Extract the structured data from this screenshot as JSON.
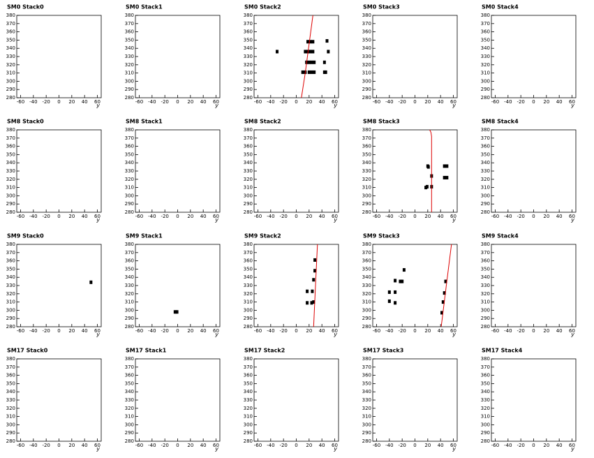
{
  "chart_data": [
    {
      "type": "scatter",
      "title": "SM0 Stack0",
      "xlabel": "y",
      "xlim": [
        -66,
        66
      ],
      "ylim": [
        280,
        380
      ],
      "xticks": [
        -60,
        -40,
        -20,
        0,
        20,
        40,
        60
      ],
      "yticks": [
        280,
        290,
        300,
        310,
        320,
        330,
        340,
        350,
        360,
        370,
        380
      ],
      "series": []
    },
    {
      "type": "scatter",
      "title": "SM0 Stack1",
      "xlabel": "y",
      "xlim": [
        -66,
        66
      ],
      "ylim": [
        280,
        380
      ],
      "xticks": [
        -60,
        -40,
        -20,
        0,
        20,
        40,
        60
      ],
      "yticks": [
        280,
        290,
        300,
        310,
        320,
        330,
        340,
        350,
        360,
        370,
        380
      ],
      "series": []
    },
    {
      "type": "scatter",
      "title": "SM0 Stack2",
      "xlabel": "y",
      "xlim": [
        -66,
        66
      ],
      "ylim": [
        280,
        380
      ],
      "xticks": [
        -60,
        -40,
        -20,
        0,
        20,
        40,
        60
      ],
      "yticks": [
        280,
        290,
        300,
        310,
        320,
        330,
        340,
        350,
        360,
        370,
        380
      ],
      "series": [
        {
          "style": "markers",
          "color": "#000000",
          "x": [
            -30,
            18,
            22,
            26,
            48,
            14,
            18,
            22,
            26,
            50,
            16,
            20,
            24,
            28,
            44,
            10,
            14,
            20,
            24,
            28,
            44,
            46
          ],
          "values": [
            336,
            348,
            348,
            348,
            349,
            336,
            336,
            336,
            336,
            336,
            323,
            323,
            323,
            323,
            323,
            311,
            311,
            311,
            311,
            311,
            311,
            311
          ]
        },
        {
          "style": "line",
          "color": "#dd0000",
          "x": [
            8,
            14,
            20,
            26
          ],
          "values": [
            280,
            310,
            345,
            380
          ]
        }
      ]
    },
    {
      "type": "scatter",
      "title": "SM0 Stack3",
      "xlabel": "y",
      "xlim": [
        -66,
        66
      ],
      "ylim": [
        280,
        380
      ],
      "xticks": [
        -60,
        -40,
        -20,
        0,
        20,
        40,
        60
      ],
      "yticks": [
        280,
        290,
        300,
        310,
        320,
        330,
        340,
        350,
        360,
        370,
        380
      ],
      "series": []
    },
    {
      "type": "scatter",
      "title": "SM0 Stack4",
      "xlabel": "y",
      "xlim": [
        -66,
        66
      ],
      "ylim": [
        280,
        380
      ],
      "xticks": [
        -60,
        -40,
        -20,
        0,
        20,
        40,
        60
      ],
      "yticks": [
        280,
        290,
        300,
        310,
        320,
        330,
        340,
        350,
        360,
        370,
        380
      ],
      "series": []
    },
    {
      "type": "scatter",
      "title": "SM8 Stack0",
      "xlabel": "y",
      "xlim": [
        -66,
        66
      ],
      "ylim": [
        280,
        380
      ],
      "xticks": [
        -60,
        -40,
        -20,
        0,
        20,
        40,
        60
      ],
      "yticks": [
        280,
        290,
        300,
        310,
        320,
        330,
        340,
        350,
        360,
        370,
        380
      ],
      "series": []
    },
    {
      "type": "scatter",
      "title": "SM8 Stack1",
      "xlabel": "y",
      "xlim": [
        -66,
        66
      ],
      "ylim": [
        280,
        380
      ],
      "xticks": [
        -60,
        -40,
        -20,
        0,
        20,
        40,
        60
      ],
      "yticks": [
        280,
        290,
        300,
        310,
        320,
        330,
        340,
        350,
        360,
        370,
        380
      ],
      "series": []
    },
    {
      "type": "scatter",
      "title": "SM8 Stack2",
      "xlabel": "y",
      "xlim": [
        -66,
        66
      ],
      "ylim": [
        280,
        380
      ],
      "xticks": [
        -60,
        -40,
        -20,
        0,
        20,
        40,
        60
      ],
      "yticks": [
        280,
        290,
        300,
        310,
        320,
        330,
        340,
        350,
        360,
        370,
        380
      ],
      "series": []
    },
    {
      "type": "scatter",
      "title": "SM8 Stack3",
      "xlabel": "y",
      "xlim": [
        -66,
        66
      ],
      "ylim": [
        280,
        380
      ],
      "xticks": [
        -60,
        -40,
        -20,
        0,
        20,
        40,
        60
      ],
      "yticks": [
        280,
        290,
        300,
        310,
        320,
        330,
        340,
        350,
        360,
        370,
        380
      ],
      "series": [
        {
          "style": "markers",
          "color": "#000000",
          "x": [
            20,
            21,
            26,
            17,
            19,
            26,
            46,
            50,
            46,
            50
          ],
          "values": [
            336,
            335,
            324,
            310,
            311,
            311,
            336,
            336,
            322,
            322
          ]
        },
        {
          "style": "line",
          "color": "#dd0000",
          "x": [
            26,
            26,
            25,
            23
          ],
          "values": [
            280,
            372,
            377,
            380
          ]
        }
      ]
    },
    {
      "type": "scatter",
      "title": "SM8 Stack4",
      "xlabel": "y",
      "xlim": [
        -66,
        66
      ],
      "ylim": [
        280,
        380
      ],
      "xticks": [
        -60,
        -40,
        -20,
        0,
        20,
        40,
        60
      ],
      "yticks": [
        280,
        290,
        300,
        310,
        320,
        330,
        340,
        350,
        360,
        370,
        380
      ],
      "series": []
    },
    {
      "type": "scatter",
      "title": "SM9 Stack0",
      "xlabel": "y",
      "xlim": [
        -66,
        66
      ],
      "ylim": [
        280,
        380
      ],
      "xticks": [
        -60,
        -40,
        -20,
        0,
        20,
        40,
        60
      ],
      "yticks": [
        280,
        290,
        300,
        310,
        320,
        330,
        340,
        350,
        360,
        370,
        380
      ],
      "series": [
        {
          "style": "markers",
          "color": "#000000",
          "x": [
            50
          ],
          "values": [
            334
          ]
        }
      ]
    },
    {
      "type": "scatter",
      "title": "SM9 Stack1",
      "xlabel": "y",
      "xlim": [
        -66,
        66
      ],
      "ylim": [
        280,
        380
      ],
      "xticks": [
        -60,
        -40,
        -20,
        0,
        20,
        40,
        60
      ],
      "yticks": [
        280,
        290,
        300,
        310,
        320,
        330,
        340,
        350,
        360,
        370,
        380
      ],
      "series": [
        {
          "style": "markers",
          "color": "#000000",
          "x": [
            -4,
            -1
          ],
          "values": [
            298,
            298
          ]
        }
      ]
    },
    {
      "type": "scatter",
      "title": "SM9 Stack2",
      "xlabel": "y",
      "xlim": [
        -66,
        66
      ],
      "ylim": [
        280,
        380
      ],
      "xticks": [
        -60,
        -40,
        -20,
        0,
        20,
        40,
        60
      ],
      "yticks": [
        280,
        290,
        300,
        310,
        320,
        330,
        340,
        350,
        360,
        370,
        380
      ],
      "series": [
        {
          "style": "markers",
          "color": "#000000",
          "x": [
            29,
            29,
            27,
            25,
            17,
            17,
            24,
            27
          ],
          "values": [
            361,
            348,
            337,
            323,
            323,
            309,
            309,
            310
          ]
        },
        {
          "style": "line",
          "color": "#dd0000",
          "x": [
            27,
            30,
            33
          ],
          "values": [
            280,
            330,
            380
          ]
        }
      ]
    },
    {
      "type": "scatter",
      "title": "SM9 Stack3",
      "xlabel": "y",
      "xlim": [
        -66,
        66
      ],
      "ylim": [
        280,
        380
      ],
      "xticks": [
        -60,
        -40,
        -20,
        0,
        20,
        40,
        60
      ],
      "yticks": [
        280,
        290,
        300,
        310,
        320,
        330,
        340,
        350,
        360,
        370,
        380
      ],
      "series": [
        {
          "style": "markers",
          "color": "#000000",
          "x": [
            48,
            46,
            44,
            42,
            -17,
            -20,
            -23,
            -31,
            -40,
            -31,
            -40,
            -31
          ],
          "values": [
            335,
            321,
            310,
            297,
            349,
            335,
            335,
            336,
            322,
            322,
            311,
            309
          ]
        },
        {
          "style": "line",
          "color": "#dd0000",
          "x": [
            41,
            49,
            57
          ],
          "values": [
            280,
            330,
            380
          ]
        }
      ]
    },
    {
      "type": "scatter",
      "title": "SM9 Stack4",
      "xlabel": "y",
      "xlim": [
        -66,
        66
      ],
      "ylim": [
        280,
        380
      ],
      "xticks": [
        -60,
        -40,
        -20,
        0,
        20,
        40,
        60
      ],
      "yticks": [
        280,
        290,
        300,
        310,
        320,
        330,
        340,
        350,
        360,
        370,
        380
      ],
      "series": []
    },
    {
      "type": "scatter",
      "title": "SM17 Stack0",
      "xlabel": "y",
      "xlim": [
        -66,
        66
      ],
      "ylim": [
        280,
        380
      ],
      "xticks": [
        -60,
        -40,
        -20,
        0,
        20,
        40,
        60
      ],
      "yticks": [
        280,
        290,
        300,
        310,
        320,
        330,
        340,
        350,
        360,
        370,
        380
      ],
      "series": []
    },
    {
      "type": "scatter",
      "title": "SM17 Stack1",
      "xlabel": "y",
      "xlim": [
        -66,
        66
      ],
      "ylim": [
        280,
        380
      ],
      "xticks": [
        -60,
        -40,
        -20,
        0,
        20,
        40,
        60
      ],
      "yticks": [
        280,
        290,
        300,
        310,
        320,
        330,
        340,
        350,
        360,
        370,
        380
      ],
      "series": []
    },
    {
      "type": "scatter",
      "title": "SM17 Stack2",
      "xlabel": "y",
      "xlim": [
        -66,
        66
      ],
      "ylim": [
        280,
        380
      ],
      "xticks": [
        -60,
        -40,
        -20,
        0,
        20,
        40,
        60
      ],
      "yticks": [
        280,
        290,
        300,
        310,
        320,
        330,
        340,
        350,
        360,
        370,
        380
      ],
      "series": []
    },
    {
      "type": "scatter",
      "title": "SM17 Stack3",
      "xlabel": "y",
      "xlim": [
        -66,
        66
      ],
      "ylim": [
        280,
        380
      ],
      "xticks": [
        -60,
        -40,
        -20,
        0,
        20,
        40,
        60
      ],
      "yticks": [
        280,
        290,
        300,
        310,
        320,
        330,
        340,
        350,
        360,
        370,
        380
      ],
      "series": []
    },
    {
      "type": "scatter",
      "title": "SM17 Stack4",
      "xlabel": "y",
      "xlim": [
        -66,
        66
      ],
      "ylim": [
        280,
        380
      ],
      "xticks": [
        -60,
        -40,
        -20,
        0,
        20,
        40,
        60
      ],
      "yticks": [
        280,
        290,
        300,
        310,
        320,
        330,
        340,
        350,
        360,
        370,
        380
      ],
      "series": []
    }
  ]
}
